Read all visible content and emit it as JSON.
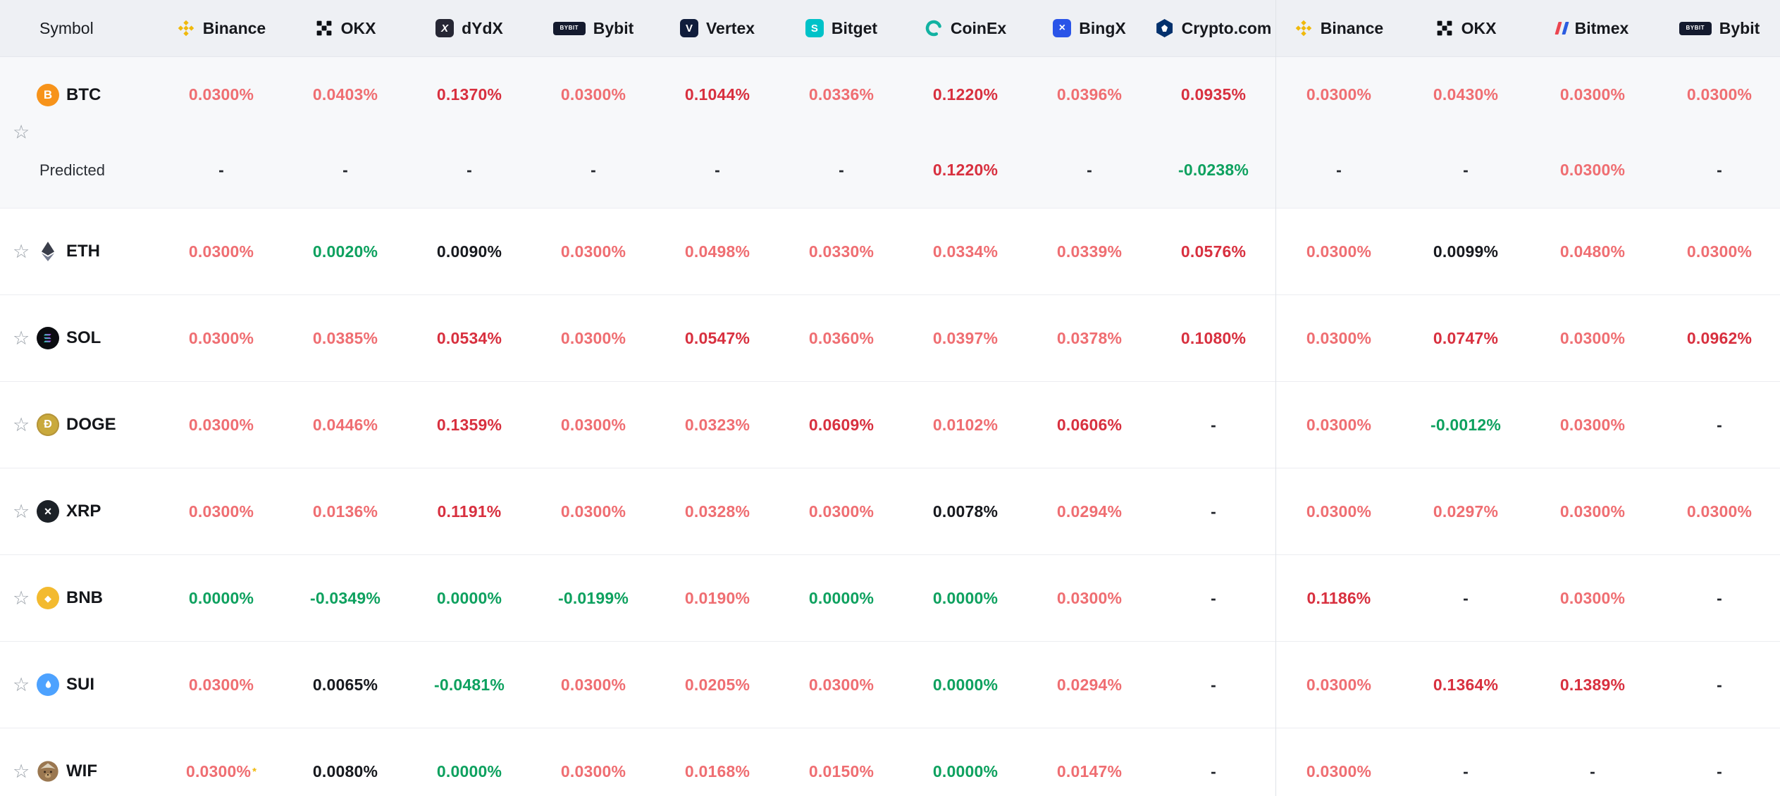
{
  "colors": {
    "rate_positive_light": "#ef6e72",
    "rate_positive_strong": "#d8303f",
    "rate_negative_green": "#0ea15f",
    "rate_neutral_dark": "#17191e",
    "header_background": "#eef0f4",
    "highlight_row_background": "#f7f8fa",
    "binance_yellow": "#F0B90B",
    "bitget_teal": "#00c2c8",
    "coinex_teal": "#12b2a2",
    "bingx_blue": "#2a54e8",
    "cryptocom_navy": "#03316d"
  },
  "header": {
    "symbol_label": "Symbol",
    "exchanges": [
      {
        "name": "Binance",
        "icon": "binance"
      },
      {
        "name": "OKX",
        "icon": "okx"
      },
      {
        "name": "dYdX",
        "icon": "dydx"
      },
      {
        "name": "Bybit",
        "icon": "bybit"
      },
      {
        "name": "Vertex",
        "icon": "vertex"
      },
      {
        "name": "Bitget",
        "icon": "bitget"
      },
      {
        "name": "CoinEx",
        "icon": "coinex"
      },
      {
        "name": "BingX",
        "icon": "bingx"
      },
      {
        "name": "Crypto.com",
        "icon": "cryptocom"
      },
      {
        "name": "Binance",
        "icon": "binance"
      },
      {
        "name": "OKX",
        "icon": "okx"
      },
      {
        "name": "Bitmex",
        "icon": "bitmex"
      },
      {
        "name": "Bybit",
        "icon": "bybit"
      }
    ]
  },
  "rows": [
    {
      "symbol": "BTC",
      "icon": "btc",
      "highlight": true,
      "predicted_label": "Predicted",
      "values": [
        [
          "0.0300%",
          "red"
        ],
        [
          "0.0403%",
          "red"
        ],
        [
          "0.1370%",
          "redb"
        ],
        [
          "0.0300%",
          "red"
        ],
        [
          "0.1044%",
          "redb"
        ],
        [
          "0.0336%",
          "red"
        ],
        [
          "0.1220%",
          "redb"
        ],
        [
          "0.0396%",
          "red"
        ],
        [
          "0.0935%",
          "redb"
        ],
        [
          "0.0300%",
          "red"
        ],
        [
          "0.0430%",
          "red"
        ],
        [
          "0.0300%",
          "red"
        ],
        [
          "0.0300%",
          "red"
        ]
      ],
      "predicted": [
        [
          "-",
          "dash"
        ],
        [
          "-",
          "dash"
        ],
        [
          "-",
          "dash"
        ],
        [
          "-",
          "dash"
        ],
        [
          "-",
          "dash"
        ],
        [
          "-",
          "dash"
        ],
        [
          "0.1220%",
          "redb"
        ],
        [
          "-",
          "dash"
        ],
        [
          "-0.0238%",
          "green"
        ],
        [
          "-",
          "dash"
        ],
        [
          "-",
          "dash"
        ],
        [
          "0.0300%",
          "red"
        ],
        [
          "-",
          "dash"
        ]
      ]
    },
    {
      "symbol": "ETH",
      "icon": "eth",
      "values": [
        [
          "0.0300%",
          "red"
        ],
        [
          "0.0020%",
          "green"
        ],
        [
          "0.0090%",
          "dark"
        ],
        [
          "0.0300%",
          "red"
        ],
        [
          "0.0498%",
          "red"
        ],
        [
          "0.0330%",
          "red"
        ],
        [
          "0.0334%",
          "red"
        ],
        [
          "0.0339%",
          "red"
        ],
        [
          "0.0576%",
          "redb"
        ],
        [
          "0.0300%",
          "red"
        ],
        [
          "0.0099%",
          "dark"
        ],
        [
          "0.0480%",
          "red"
        ],
        [
          "0.0300%",
          "red"
        ]
      ]
    },
    {
      "symbol": "SOL",
      "icon": "sol",
      "values": [
        [
          "0.0300%",
          "red"
        ],
        [
          "0.0385%",
          "red"
        ],
        [
          "0.0534%",
          "redb"
        ],
        [
          "0.0300%",
          "red"
        ],
        [
          "0.0547%",
          "redb"
        ],
        [
          "0.0360%",
          "red"
        ],
        [
          "0.0397%",
          "red"
        ],
        [
          "0.0378%",
          "red"
        ],
        [
          "0.1080%",
          "redb"
        ],
        [
          "0.0300%",
          "red"
        ],
        [
          "0.0747%",
          "redb"
        ],
        [
          "0.0300%",
          "red"
        ],
        [
          "0.0962%",
          "redb"
        ]
      ]
    },
    {
      "symbol": "DOGE",
      "icon": "doge",
      "values": [
        [
          "0.0300%",
          "red"
        ],
        [
          "0.0446%",
          "red"
        ],
        [
          "0.1359%",
          "redb"
        ],
        [
          "0.0300%",
          "red"
        ],
        [
          "0.0323%",
          "red"
        ],
        [
          "0.0609%",
          "redb"
        ],
        [
          "0.0102%",
          "red"
        ],
        [
          "0.0606%",
          "redb"
        ],
        [
          "-",
          "dash"
        ],
        [
          "0.0300%",
          "red"
        ],
        [
          "-0.0012%",
          "green"
        ],
        [
          "0.0300%",
          "red"
        ],
        [
          "-",
          "dash"
        ]
      ]
    },
    {
      "symbol": "XRP",
      "icon": "xrp",
      "values": [
        [
          "0.0300%",
          "red"
        ],
        [
          "0.0136%",
          "red"
        ],
        [
          "0.1191%",
          "redb"
        ],
        [
          "0.0300%",
          "red"
        ],
        [
          "0.0328%",
          "red"
        ],
        [
          "0.0300%",
          "red"
        ],
        [
          "0.0078%",
          "dark"
        ],
        [
          "0.0294%",
          "red"
        ],
        [
          "-",
          "dash"
        ],
        [
          "0.0300%",
          "red"
        ],
        [
          "0.0297%",
          "red"
        ],
        [
          "0.0300%",
          "red"
        ],
        [
          "0.0300%",
          "red"
        ]
      ]
    },
    {
      "symbol": "BNB",
      "icon": "bnb",
      "values": [
        [
          "0.0000%",
          "green"
        ],
        [
          "-0.0349%",
          "green"
        ],
        [
          "0.0000%",
          "green"
        ],
        [
          "-0.0199%",
          "green"
        ],
        [
          "0.0190%",
          "red"
        ],
        [
          "0.0000%",
          "green"
        ],
        [
          "0.0000%",
          "green"
        ],
        [
          "0.0300%",
          "red"
        ],
        [
          "-",
          "dash"
        ],
        [
          "0.1186%",
          "redb"
        ],
        [
          "-",
          "dash"
        ],
        [
          "0.0300%",
          "red"
        ],
        [
          "-",
          "dash"
        ]
      ]
    },
    {
      "symbol": "SUI",
      "icon": "sui",
      "values": [
        [
          "0.0300%",
          "red"
        ],
        [
          "0.0065%",
          "dark"
        ],
        [
          "-0.0481%",
          "green"
        ],
        [
          "0.0300%",
          "red"
        ],
        [
          "0.0205%",
          "red"
        ],
        [
          "0.0300%",
          "red"
        ],
        [
          "0.0000%",
          "green"
        ],
        [
          "0.0294%",
          "red"
        ],
        [
          "-",
          "dash"
        ],
        [
          "0.0300%",
          "red"
        ],
        [
          "0.1364%",
          "redb"
        ],
        [
          "0.1389%",
          "redb"
        ],
        [
          "-",
          "dash"
        ]
      ]
    },
    {
      "symbol": "WIF",
      "icon": "wif",
      "values": [
        [
          "0.0300%",
          "red",
          "*"
        ],
        [
          "0.0080%",
          "dark"
        ],
        [
          "0.0000%",
          "green"
        ],
        [
          "0.0300%",
          "red"
        ],
        [
          "0.0168%",
          "red"
        ],
        [
          "0.0150%",
          "red"
        ],
        [
          "0.0000%",
          "green"
        ],
        [
          "0.0147%",
          "red"
        ],
        [
          "-",
          "dash"
        ],
        [
          "0.0300%",
          "red"
        ],
        [
          "-",
          "dash"
        ],
        [
          "-",
          "dash"
        ],
        [
          "-",
          "dash"
        ]
      ]
    }
  ]
}
